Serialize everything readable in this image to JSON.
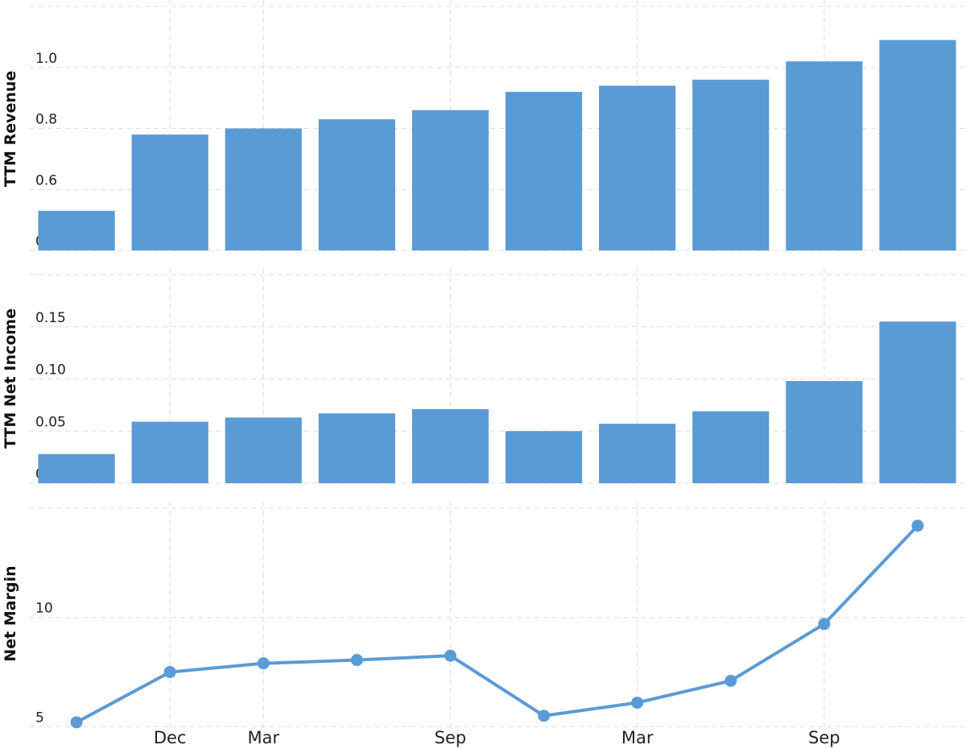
{
  "chart_data": [
    {
      "type": "bar",
      "ylabel": "TTM Revenue",
      "ylim": [
        0.4,
        1.2
      ],
      "yticks": [
        0.4,
        0.6,
        0.8,
        1.0
      ],
      "ytick_labels": [
        "0.4",
        "0.6",
        "0.8",
        "1.0"
      ],
      "values": [
        0.53,
        0.78,
        0.8,
        0.83,
        0.86,
        0.92,
        0.94,
        0.96,
        1.02,
        1.09
      ],
      "color": "#5b9bd5",
      "grid": true
    },
    {
      "type": "bar",
      "ylabel": "TTM Net Income",
      "ylim": [
        0.0,
        0.2
      ],
      "yticks": [
        0.0,
        0.05,
        0.1,
        0.15
      ],
      "ytick_labels": [
        "0.00",
        "0.05",
        "0.10",
        "0.15"
      ],
      "values": [
        0.028,
        0.059,
        0.063,
        0.067,
        0.071,
        0.05,
        0.057,
        0.069,
        0.098,
        0.155
      ],
      "color": "#5b9bd5",
      "grid": true
    },
    {
      "type": "line",
      "ylabel": "Net Margin",
      "ylim": [
        4.9,
        15.0
      ],
      "yticks": [
        5,
        10
      ],
      "ytick_labels": [
        "5",
        "10"
      ],
      "values": [
        5.2,
        7.5,
        7.9,
        8.05,
        8.25,
        5.5,
        6.1,
        7.1,
        9.7,
        14.2
      ],
      "color": "#5b9bd5",
      "grid": true
    }
  ],
  "x_axis": {
    "points": 10,
    "tick_labels": [
      {
        "index": 1,
        "label": "Dec"
      },
      {
        "index": 2,
        "label": "Mar"
      },
      {
        "index": 4,
        "label": "Sep"
      },
      {
        "index": 6,
        "label": "Mar"
      },
      {
        "index": 8,
        "label": "Sep"
      }
    ]
  }
}
